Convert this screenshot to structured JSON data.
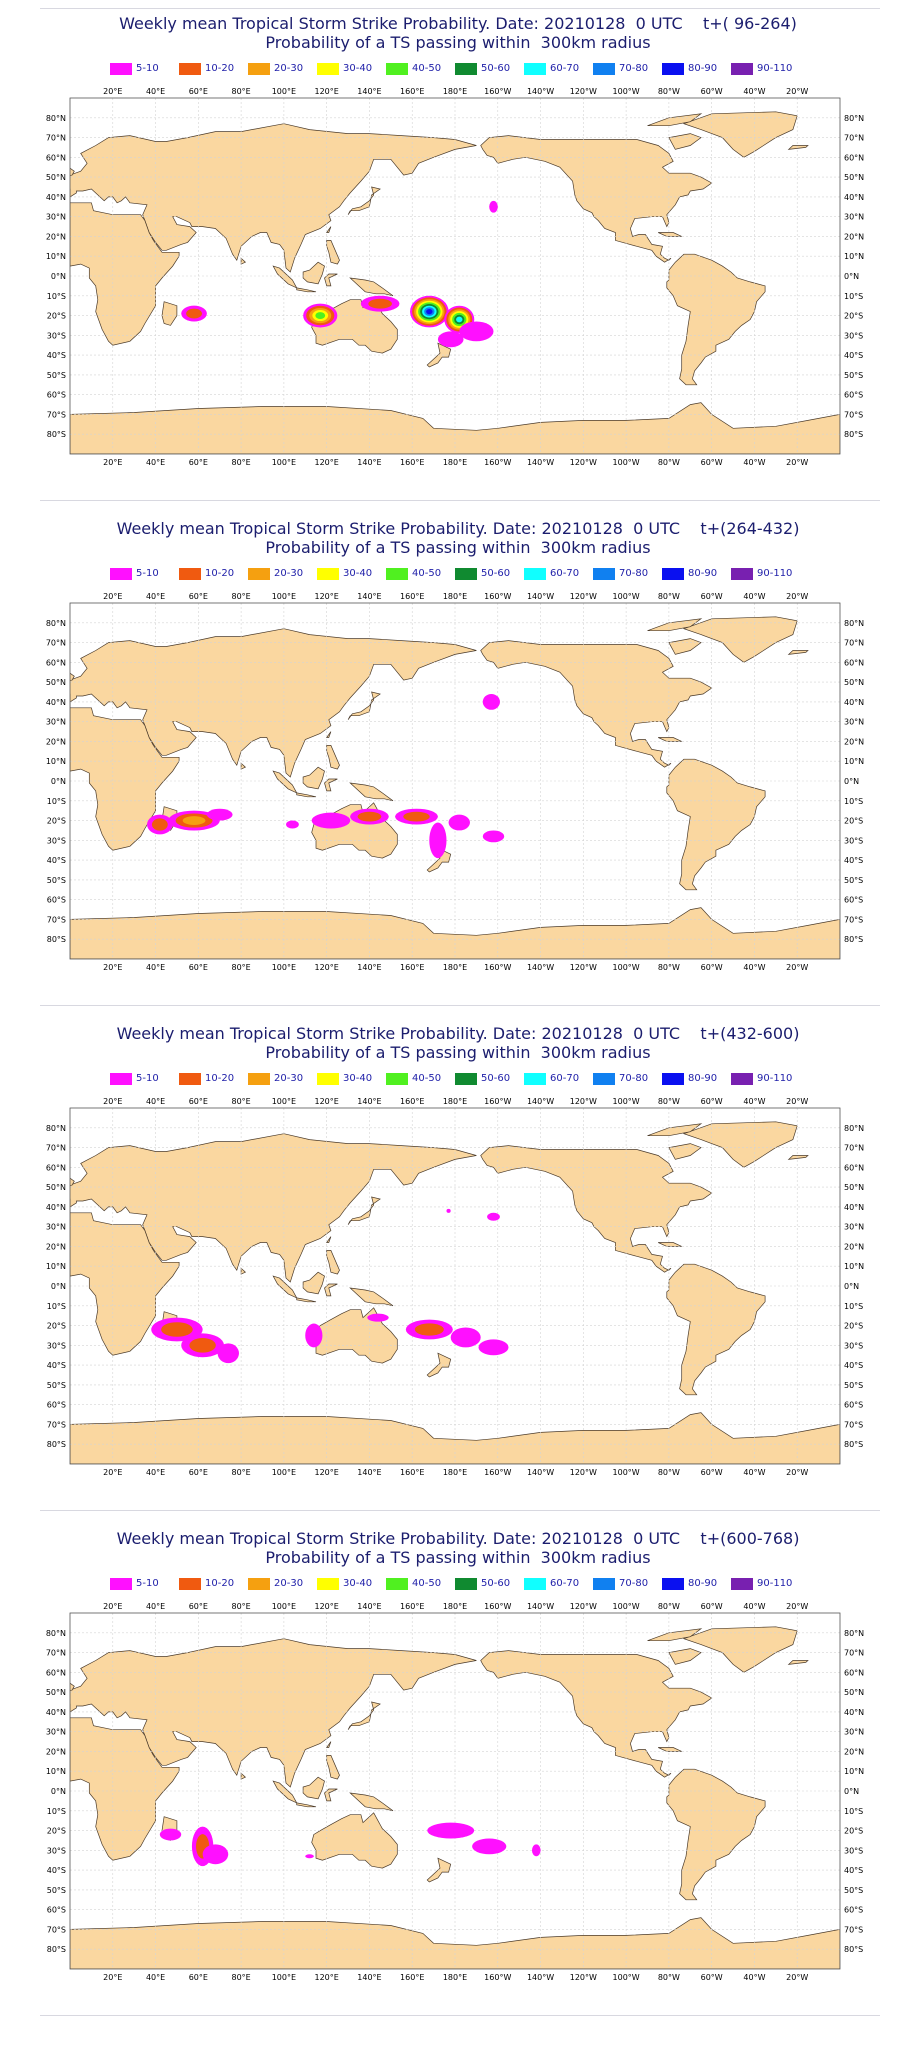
{
  "colors": {
    "title": "#1b1d6e",
    "legend_text": "#2222aa",
    "land": "#fad7a0",
    "ocean": "#ffffff",
    "coast": "#4a3a2a",
    "grid": "#d4d4d4"
  },
  "legend": [
    {
      "label": "5-10",
      "color": "#ff10ff"
    },
    {
      "label": "10-20",
      "color": "#f05a10"
    },
    {
      "label": "20-30",
      "color": "#f5a010"
    },
    {
      "label": "30-40",
      "color": "#ffff00"
    },
    {
      "label": "40-50",
      "color": "#50f020"
    },
    {
      "label": "50-60",
      "color": "#108a30"
    },
    {
      "label": "60-70",
      "color": "#10ffff"
    },
    {
      "label": "70-80",
      "color": "#1080f0"
    },
    {
      "label": "80-90",
      "color": "#0a10f0"
    },
    {
      "label": "90-110",
      "color": "#7820b0"
    }
  ],
  "lon_labels": [
    "20°E",
    "40°E",
    "60°E",
    "80°E",
    "100°E",
    "120°E",
    "140°E",
    "160°E",
    "180°E",
    "160°W",
    "140°W",
    "120°W",
    "100°W",
    "80°W",
    "60°W",
    "40°W",
    "20°W"
  ],
  "lat_labels": [
    "80°N",
    "70°N",
    "60°N",
    "50°N",
    "40°N",
    "30°N",
    "20°N",
    "10°N",
    "0°N",
    "10°S",
    "20°S",
    "30°S",
    "40°S",
    "50°S",
    "60°S",
    "70°S",
    "80°S"
  ],
  "panels": [
    {
      "title": "Weekly mean Tropical Storm Strike Probability. Date: 20210128  0 UTC    t+( 96-264)",
      "subtitle": "Probability of a TS passing within  300km radius",
      "blobs": [
        {
          "lon": 58,
          "lat": -19,
          "rx": 6,
          "ry": 4,
          "levels": 2
        },
        {
          "lon": 117,
          "lat": -20,
          "rx": 8,
          "ry": 6,
          "levels": 5
        },
        {
          "lon": 145,
          "lat": -14,
          "rx": 9,
          "ry": 4,
          "levels": 2
        },
        {
          "lon": 168,
          "lat": -18,
          "rx": 9,
          "ry": 8,
          "levels": 9
        },
        {
          "lon": 182,
          "lat": -22,
          "rx": 7,
          "ry": 7,
          "levels": 7
        },
        {
          "lon": 190,
          "lat": -28,
          "rx": 8,
          "ry": 5,
          "levels": 1
        },
        {
          "lon": 178,
          "lat": -32,
          "rx": 6,
          "ry": 4,
          "levels": 1
        },
        {
          "lon": 198,
          "lat": 35,
          "rx": 2,
          "ry": 3,
          "levels": 1
        }
      ]
    },
    {
      "title": "Weekly mean Tropical Storm Strike Probability. Date: 20210128  0 UTC    t+(264-432)",
      "subtitle": "Probability of a TS passing within  300km radius",
      "blobs": [
        {
          "lon": 42,
          "lat": -22,
          "rx": 6,
          "ry": 5,
          "levels": 2
        },
        {
          "lon": 58,
          "lat": -20,
          "rx": 12,
          "ry": 5,
          "levels": 3
        },
        {
          "lon": 70,
          "lat": -17,
          "rx": 6,
          "ry": 3,
          "levels": 1
        },
        {
          "lon": 104,
          "lat": -22,
          "rx": 3,
          "ry": 2,
          "levels": 1
        },
        {
          "lon": 122,
          "lat": -20,
          "rx": 9,
          "ry": 4,
          "levels": 1
        },
        {
          "lon": 140,
          "lat": -18,
          "rx": 9,
          "ry": 4,
          "levels": 2
        },
        {
          "lon": 162,
          "lat": -18,
          "rx": 10,
          "ry": 4,
          "levels": 2
        },
        {
          "lon": 172,
          "lat": -30,
          "rx": 4,
          "ry": 9,
          "levels": 1
        },
        {
          "lon": 182,
          "lat": -21,
          "rx": 5,
          "ry": 4,
          "levels": 1
        },
        {
          "lon": 198,
          "lat": -28,
          "rx": 5,
          "ry": 3,
          "levels": 1
        },
        {
          "lon": 197,
          "lat": 40,
          "rx": 4,
          "ry": 4,
          "levels": 1
        }
      ]
    },
    {
      "title": "Weekly mean Tropical Storm Strike Probability. Date: 20210128  0 UTC    t+(432-600)",
      "subtitle": "Probability of a TS passing within  300km radius",
      "blobs": [
        {
          "lon": 50,
          "lat": -22,
          "rx": 12,
          "ry": 6,
          "levels": 2
        },
        {
          "lon": 62,
          "lat": -30,
          "rx": 10,
          "ry": 6,
          "levels": 2
        },
        {
          "lon": 74,
          "lat": -34,
          "rx": 5,
          "ry": 5,
          "levels": 1
        },
        {
          "lon": 114,
          "lat": -25,
          "rx": 4,
          "ry": 6,
          "levels": 1
        },
        {
          "lon": 144,
          "lat": -16,
          "rx": 5,
          "ry": 2,
          "levels": 1
        },
        {
          "lon": 168,
          "lat": -22,
          "rx": 11,
          "ry": 5,
          "levels": 2
        },
        {
          "lon": 185,
          "lat": -26,
          "rx": 7,
          "ry": 5,
          "levels": 1
        },
        {
          "lon": 198,
          "lat": -31,
          "rx": 7,
          "ry": 4,
          "levels": 1
        },
        {
          "lon": 198,
          "lat": 35,
          "rx": 3,
          "ry": 2,
          "levels": 1
        },
        {
          "lon": 177,
          "lat": 38,
          "rx": 1,
          "ry": 1,
          "levels": 1
        }
      ]
    },
    {
      "title": "Weekly mean Tropical Storm Strike Probability. Date: 20210128  0 UTC    t+(600-768)",
      "subtitle": "Probability of a TS passing within  300km radius",
      "blobs": [
        {
          "lon": 47,
          "lat": -22,
          "rx": 5,
          "ry": 3,
          "levels": 1
        },
        {
          "lon": 62,
          "lat": -28,
          "rx": 5,
          "ry": 10,
          "levels": 2
        },
        {
          "lon": 68,
          "lat": -32,
          "rx": 6,
          "ry": 5,
          "levels": 1
        },
        {
          "lon": 178,
          "lat": -20,
          "rx": 11,
          "ry": 4,
          "levels": 1
        },
        {
          "lon": 196,
          "lat": -28,
          "rx": 8,
          "ry": 4,
          "levels": 1
        },
        {
          "lon": 218,
          "lat": -30,
          "rx": 2,
          "ry": 3,
          "levels": 1
        },
        {
          "lon": 112,
          "lat": -33,
          "rx": 2,
          "ry": 1,
          "levels": 1
        }
      ]
    }
  ]
}
